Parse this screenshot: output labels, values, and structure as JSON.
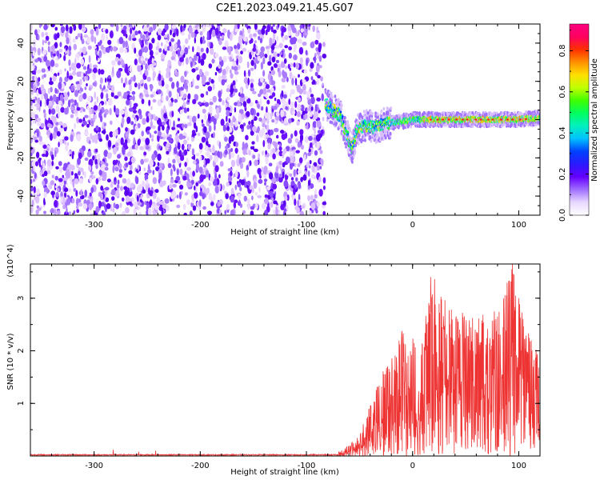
{
  "title": "C2E1.2023.049.21.45.G07",
  "chart_data": [
    {
      "type": "heatmap",
      "xlabel": "Height of straight line (km)",
      "ylabel": "Frequency (Hz)",
      "xlim": [
        -360,
        120
      ],
      "ylim": [
        -50,
        50
      ],
      "xticks": [
        -300,
        -200,
        -100,
        0,
        100
      ],
      "yticks": [
        -40,
        -20,
        0,
        20,
        40
      ],
      "noise_region_x": [
        -360,
        -83
      ],
      "signal_trace": [
        {
          "x": -82,
          "y": 8
        },
        {
          "x": -75,
          "y": 5
        },
        {
          "x": -68,
          "y": 2
        },
        {
          "x": -62,
          "y": -8
        },
        {
          "x": -57,
          "y": -15
        },
        {
          "x": -52,
          "y": -5
        },
        {
          "x": -45,
          "y": -3
        },
        {
          "x": -35,
          "y": -4
        },
        {
          "x": -25,
          "y": -2
        },
        {
          "x": -10,
          "y": -1
        },
        {
          "x": 0,
          "y": 0
        },
        {
          "x": 20,
          "y": 0
        },
        {
          "x": 50,
          "y": 0
        },
        {
          "x": 80,
          "y": 0
        },
        {
          "x": 100,
          "y": 0
        },
        {
          "x": 120,
          "y": 1
        }
      ],
      "colorbar": {
        "label": "Normalized spectral amplitude",
        "range": [
          0.0,
          0.93
        ],
        "ticks": [
          "0.0",
          "0.2",
          "0.4",
          "0.6",
          "0.8"
        ],
        "colors": [
          "#ffffff",
          "#e8d8ff",
          "#a070ff",
          "#6600ff",
          "#2a1aff",
          "#0040ff",
          "#00c0ff",
          "#00f0c0",
          "#00ff60",
          "#40ff00",
          "#c0ff00",
          "#ffe000",
          "#ff9000",
          "#ff3000",
          "#ff0060",
          "#ff0080"
        ]
      }
    },
    {
      "type": "line",
      "xlabel": "Height of straight line (km)",
      "ylabel": "SNR (10 * v/v)",
      "multiplier": "(x10^4)",
      "xlim": [
        -360,
        120
      ],
      "ylim": [
        0,
        3.65
      ],
      "xticks": [
        -300,
        -200,
        -100,
        0,
        100
      ],
      "yticks": [
        1,
        2,
        3
      ],
      "color": "#ee3333",
      "envelope": [
        {
          "x": -360,
          "y": 0.02
        },
        {
          "x": -100,
          "y": 0.02
        },
        {
          "x": -80,
          "y": 0.04
        },
        {
          "x": -65,
          "y": 0.12
        },
        {
          "x": -50,
          "y": 0.4
        },
        {
          "x": -40,
          "y": 1.0
        },
        {
          "x": -30,
          "y": 1.5
        },
        {
          "x": -20,
          "y": 2.0
        },
        {
          "x": -10,
          "y": 2.4
        },
        {
          "x": 0,
          "y": 2.3
        },
        {
          "x": 10,
          "y": 2.5
        },
        {
          "x": 20,
          "y": 3.4
        },
        {
          "x": 40,
          "y": 2.8
        },
        {
          "x": 60,
          "y": 2.6
        },
        {
          "x": 80,
          "y": 2.9
        },
        {
          "x": 95,
          "y": 3.65
        },
        {
          "x": 105,
          "y": 2.5
        },
        {
          "x": 120,
          "y": 2.0
        }
      ],
      "spikes": [
        {
          "x": -282,
          "y": 0.12
        },
        {
          "x": -258,
          "y": 0.08
        },
        {
          "x": -242,
          "y": 0.1
        },
        {
          "x": 17,
          "y": 3.4
        },
        {
          "x": 94,
          "y": 3.65
        },
        {
          "x": 97,
          "y": 3.05
        }
      ]
    }
  ]
}
